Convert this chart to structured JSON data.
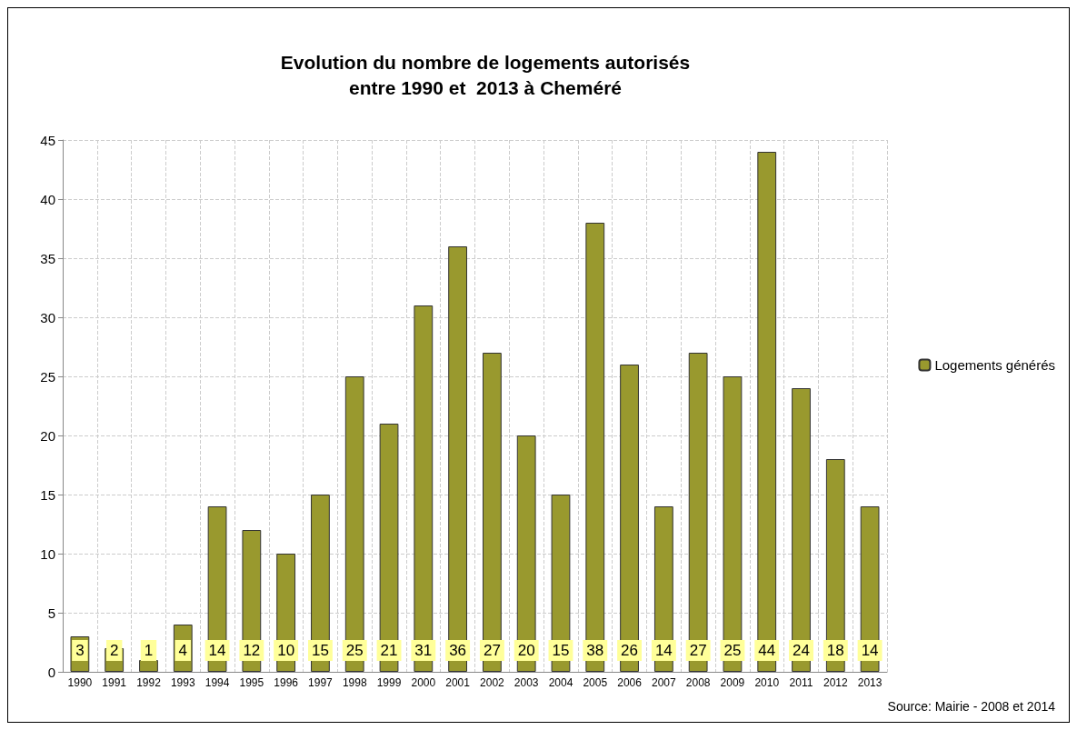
{
  "chart_data": {
    "type": "bar",
    "title": "Evolution du nombre de logements autorisés\nentre 1990 et  2013 à Cheméré",
    "categories": [
      "1990",
      "1991",
      "1992",
      "1993",
      "1994",
      "1995",
      "1996",
      "1997",
      "1998",
      "1999",
      "2000",
      "2001",
      "2002",
      "2003",
      "2004",
      "2005",
      "2006",
      "2007",
      "2008",
      "2009",
      "2010",
      "2011",
      "2012",
      "2013"
    ],
    "series": [
      {
        "name": "Logements générés",
        "color": "#99992e",
        "values": [
          3,
          2,
          1,
          4,
          14,
          12,
          10,
          15,
          25,
          21,
          31,
          36,
          27,
          20,
          15,
          38,
          26,
          14,
          27,
          25,
          44,
          24,
          18,
          14
        ]
      }
    ],
    "ylim": [
      0,
      45
    ],
    "yticks": [
      0,
      5,
      10,
      15,
      20,
      25,
      30,
      35,
      40,
      45
    ],
    "grid": true,
    "legend": "right",
    "data_labels": true,
    "annotations": [
      "Source: Mairie - 2008 et 2014"
    ]
  }
}
